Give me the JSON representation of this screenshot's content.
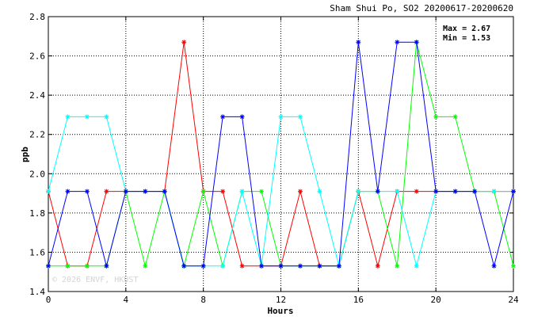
{
  "chart_data": {
    "type": "line",
    "title": "Sham Shui Po, SO2 20200617-20200620",
    "xlabel": "Hours",
    "ylabel": "ppb",
    "xlim": [
      0,
      24
    ],
    "ylim": [
      1.4,
      2.8
    ],
    "xticks": [
      0,
      4,
      8,
      12,
      16,
      20,
      24
    ],
    "yticks": [
      1.4,
      1.6,
      1.8,
      2.0,
      2.2,
      2.4,
      2.6,
      2.8
    ],
    "ytick_labels": [
      "1.4",
      "1.6",
      "1.8",
      "2.0",
      "2.2",
      "2.4",
      "2.6",
      "2.8"
    ],
    "grid": true,
    "stats": {
      "max": "Max = 2.67",
      "min": "Min = 1.53"
    },
    "watermark": "© 2026 ENVF, HKUST",
    "series": [
      {
        "color": "#ff0000",
        "x": [
          0,
          1,
          2,
          3,
          4,
          5,
          6,
          7,
          8,
          9,
          10,
          11,
          12,
          13,
          14,
          15,
          16,
          17,
          18,
          19,
          20,
          21,
          22,
          23,
          24
        ],
        "values": [
          1.91,
          1.53,
          1.53,
          1.91,
          1.91,
          1.91,
          1.91,
          2.67,
          1.91,
          1.91,
          1.53,
          1.53,
          1.53,
          1.91,
          1.53,
          1.53,
          1.91,
          1.53,
          1.91,
          1.91,
          1.91,
          1.91,
          1.91,
          1.91,
          1.91
        ]
      },
      {
        "color": "#00ff00",
        "x": [
          0,
          1,
          2,
          3,
          4,
          5,
          6,
          7,
          8,
          9,
          10,
          11,
          12,
          13,
          14,
          15,
          16,
          17,
          18,
          19,
          20,
          21,
          22,
          23,
          24
        ],
        "values": [
          1.53,
          1.53,
          1.53,
          1.53,
          1.91,
          1.53,
          1.91,
          1.53,
          1.91,
          1.53,
          1.91,
          1.91,
          1.53,
          1.53,
          1.53,
          1.53,
          1.91,
          1.91,
          1.53,
          2.67,
          2.29,
          2.29,
          1.91,
          1.91,
          1.53
        ]
      },
      {
        "color": "#00ffff",
        "x": [
          0,
          1,
          2,
          3,
          4,
          5,
          6,
          7,
          8,
          9,
          10,
          11,
          12,
          13,
          14,
          15,
          16,
          17,
          18,
          19,
          20,
          21,
          22,
          23,
          24
        ],
        "values": [
          1.91,
          2.29,
          2.29,
          2.29,
          1.91,
          1.91,
          1.91,
          1.53,
          1.53,
          1.53,
          1.91,
          1.53,
          2.29,
          2.29,
          1.91,
          1.53,
          1.91,
          1.91,
          1.91,
          1.53,
          1.91,
          1.91,
          1.91,
          1.91,
          1.91
        ]
      },
      {
        "color": "#0000ff",
        "x": [
          0,
          1,
          2,
          3,
          4,
          5,
          6,
          7,
          8,
          9,
          10,
          11,
          12,
          13,
          14,
          15,
          16,
          17,
          18,
          19,
          20,
          21,
          22,
          23,
          24
        ],
        "values": [
          1.53,
          1.91,
          1.91,
          1.53,
          1.91,
          1.91,
          1.91,
          1.53,
          1.53,
          2.29,
          2.29,
          1.53,
          1.53,
          1.53,
          1.53,
          1.53,
          2.67,
          1.91,
          2.67,
          2.67,
          1.91,
          1.91,
          1.91,
          1.53,
          1.91
        ]
      }
    ]
  }
}
